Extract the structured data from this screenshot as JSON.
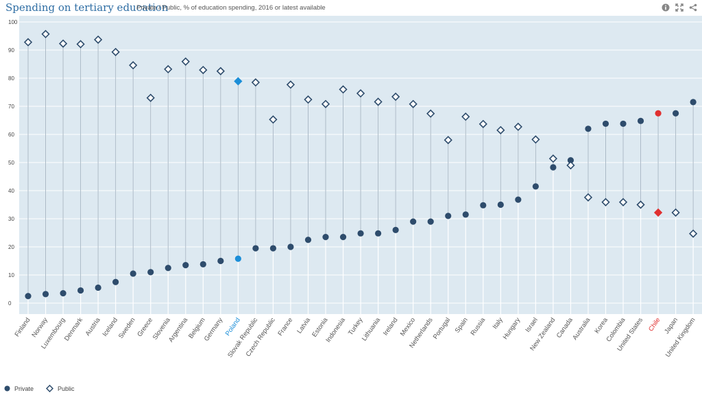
{
  "header": {
    "title": "Spending on tertiary education",
    "subtitle": "Private / Public, % of education spending, 2016 or latest available"
  },
  "toolbar": {
    "icons": [
      "info-icon",
      "fullscreen-icon",
      "share-icon"
    ]
  },
  "legend": {
    "private_label": "Private",
    "public_label": "Public"
  },
  "colors": {
    "plot_background": "#dde9f1",
    "private": "#2e4c6c",
    "public": "#2e4c6c",
    "highlight_poland": "#1b8ed8",
    "highlight_chile": "#e03030",
    "axis_text": "#444444"
  },
  "chart_data": {
    "type": "scatter",
    "ylim": [
      0,
      100
    ],
    "yticks": [
      0,
      10,
      20,
      30,
      40,
      50,
      60,
      70,
      80,
      90,
      100
    ],
    "grid": true,
    "legend_position": "bottom-left",
    "highlighted": {
      "Poland": "#1b8ed8",
      "Chile": "#e03030"
    },
    "categories": [
      "Finland",
      "Norway",
      "Luxembourg",
      "Denmark",
      "Austria",
      "Iceland",
      "Sweden",
      "Greece",
      "Slovenia",
      "Argentina",
      "Belgium",
      "Germany",
      "Poland",
      "Slovak Republic",
      "Czech Republic",
      "France",
      "Latvia",
      "Estonia",
      "Indonesia",
      "Turkey",
      "Lithuania",
      "Ireland",
      "Mexico",
      "Netherlands",
      "Portugal",
      "Spain",
      "Russia",
      "Italy",
      "Hungary",
      "Israel",
      "New Zealand",
      "Canada",
      "Australia",
      "Korea",
      "Colombia",
      "United States",
      "Chile",
      "Japan",
      "United Kingdom"
    ],
    "series": [
      {
        "name": "Private",
        "marker": "circle",
        "values": [
          2.5,
          3.2,
          3.5,
          4.5,
          5.5,
          7.5,
          10.5,
          11.0,
          12.5,
          13.5,
          13.8,
          15.0,
          15.8,
          19.5,
          19.5,
          20.0,
          22.5,
          23.5,
          23.5,
          24.8,
          24.8,
          26.0,
          29.0,
          29.0,
          31.0,
          31.5,
          34.8,
          35.0,
          36.8,
          41.5,
          48.3,
          50.8,
          62.0,
          63.8,
          63.8,
          64.8,
          67.5,
          67.5,
          71.5
        ]
      },
      {
        "name": "Public",
        "marker": "diamond",
        "values": [
          92.8,
          95.7,
          92.3,
          92.1,
          93.7,
          89.3,
          84.6,
          73.0,
          83.2,
          85.9,
          82.9,
          82.5,
          78.9,
          78.5,
          65.3,
          77.7,
          72.4,
          70.8,
          76.0,
          74.6,
          71.6,
          73.4,
          70.8,
          67.4,
          58.0,
          66.3,
          63.7,
          61.5,
          62.7,
          58.2,
          51.4,
          49.0,
          37.6,
          35.9,
          35.9,
          35.0,
          32.2,
          32.2,
          24.7
        ]
      }
    ]
  }
}
